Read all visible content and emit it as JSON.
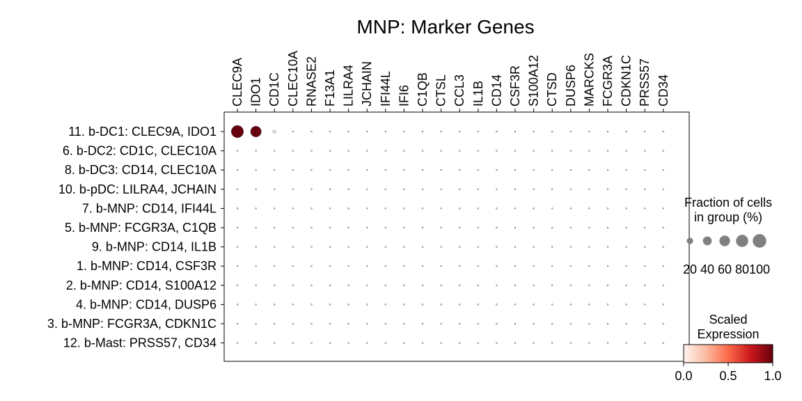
{
  "chart_data": {
    "type": "dotplot",
    "title": "MNP: Marker Genes",
    "genes": [
      "CLEC9A",
      "IDO1",
      "CD1C",
      "CLEC10A",
      "RNASE2",
      "F13A1",
      "LILRA4",
      "JCHAIN",
      "IFI44L",
      "IFI6",
      "C1QB",
      "CTSL",
      "CCL3",
      "IL1B",
      "CD14",
      "CSF3R",
      "S100A12",
      "CTSD",
      "DUSP6",
      "MARCKS",
      "FCGR3A",
      "CDKN1C",
      "PRSS57",
      "CD34"
    ],
    "groups": [
      "11. b-DC1: CLEC9A, IDO1",
      "6. b-DC2: CD1C, CLEC10A",
      "8. b-DC3: CD14, CLEC10A",
      "10. b-pDC: LILRA4, JCHAIN",
      "7. b-MNP: CD14, IFI44L",
      "5. b-MNP: FCGR3A, C1QB",
      "9. b-MNP: CD14, IL1B",
      "1. b-MNP: CD14, CSF3R",
      "2. b-MNP: CD14, S100A12",
      "4. b-MNP: CD14, DUSP6",
      "3. b-MNP: FCGR3A, CDKN1C",
      "12. b-Mast: PRSS57, CD34"
    ],
    "fraction_pct": [
      [
        90,
        70,
        5,
        1,
        1,
        1,
        1,
        1,
        1,
        1,
        1,
        1,
        1,
        1,
        1,
        1,
        1,
        1,
        1,
        1,
        1,
        1,
        1,
        1
      ],
      [
        1,
        1,
        1,
        1,
        1,
        1,
        1,
        1,
        1,
        1,
        1,
        1,
        1,
        1,
        1,
        1,
        1,
        1,
        1,
        1,
        1,
        1,
        1,
        1
      ],
      [
        1,
        1,
        1,
        1,
        1,
        1,
        1,
        1,
        1,
        1,
        1,
        1,
        1,
        1,
        1,
        1,
        1,
        1,
        1,
        1,
        1,
        1,
        1,
        1
      ],
      [
        1,
        1,
        1,
        1,
        1,
        1,
        1,
        1,
        1,
        1,
        1,
        1,
        1,
        1,
        1,
        1,
        1,
        1,
        1,
        1,
        1,
        1,
        1,
        1
      ],
      [
        1,
        1,
        1,
        1,
        1,
        1,
        1,
        1,
        1,
        1,
        1,
        1,
        1,
        1,
        1,
        1,
        1,
        1,
        1,
        1,
        1,
        1,
        1,
        1
      ],
      [
        1,
        1,
        1,
        1,
        1,
        1,
        1,
        1,
        1,
        1,
        1,
        1,
        1,
        1,
        1,
        1,
        1,
        1,
        1,
        1,
        1,
        1,
        1,
        1
      ],
      [
        1,
        1,
        1,
        1,
        1,
        1,
        1,
        1,
        1,
        1,
        1,
        1,
        1,
        1,
        1,
        1,
        1,
        1,
        1,
        1,
        1,
        1,
        1,
        1
      ],
      [
        1,
        1,
        1,
        1,
        1,
        1,
        1,
        1,
        1,
        1,
        1,
        1,
        1,
        1,
        1,
        1,
        1,
        1,
        1,
        1,
        1,
        1,
        1,
        1
      ],
      [
        1,
        1,
        1,
        1,
        1,
        1,
        1,
        1,
        1,
        1,
        1,
        1,
        1,
        1,
        1,
        1,
        1,
        1,
        1,
        1,
        1,
        1,
        1,
        1
      ],
      [
        1,
        1,
        1,
        1,
        1,
        1,
        1,
        1,
        1,
        1,
        1,
        1,
        1,
        1,
        1,
        1,
        1,
        1,
        1,
        1,
        1,
        1,
        1,
        1
      ],
      [
        1,
        1,
        1,
        1,
        1,
        1,
        1,
        1,
        1,
        1,
        1,
        1,
        1,
        1,
        1,
        1,
        1,
        1,
        1,
        1,
        1,
        1,
        1,
        1
      ],
      [
        1,
        1,
        1,
        1,
        1,
        1,
        1,
        1,
        1,
        1,
        1,
        1,
        1,
        1,
        1,
        1,
        1,
        1,
        1,
        1,
        1,
        1,
        1,
        1
      ]
    ],
    "scaled_expression": [
      [
        1,
        1,
        0,
        0,
        0,
        0,
        0,
        0,
        0,
        0,
        0,
        0,
        0,
        0,
        0,
        0,
        0,
        0,
        0,
        0,
        0,
        0,
        0,
        0
      ],
      [
        0,
        0,
        0,
        0,
        0,
        0,
        0,
        0,
        0,
        0,
        0,
        0,
        0,
        0,
        0,
        0,
        0,
        0,
        0,
        0,
        0,
        0,
        0,
        0
      ],
      [
        0,
        0,
        0,
        0,
        0,
        0,
        0,
        0,
        0,
        0,
        0,
        0,
        0,
        0,
        0,
        0,
        0,
        0,
        0,
        0,
        0,
        0,
        0,
        0
      ],
      [
        0,
        0,
        0,
        0,
        0,
        0,
        0,
        0,
        0,
        0,
        0,
        0,
        0,
        0,
        0,
        0,
        0,
        0,
        0,
        0,
        0,
        0,
        0,
        0
      ],
      [
        0,
        0,
        0,
        0,
        0,
        0,
        0,
        0,
        0,
        0,
        0,
        0,
        0,
        0,
        0,
        0,
        0,
        0,
        0,
        0,
        0,
        0,
        0,
        0
      ],
      [
        0,
        0,
        0,
        0,
        0,
        0,
        0,
        0,
        0,
        0,
        0,
        0,
        0,
        0,
        0,
        0,
        0,
        0,
        0,
        0,
        0,
        0,
        0,
        0
      ],
      [
        0,
        0,
        0,
        0,
        0,
        0,
        0,
        0,
        0,
        0,
        0,
        0,
        0,
        0,
        0,
        0,
        0,
        0,
        0,
        0,
        0,
        0,
        0,
        0
      ],
      [
        0,
        0,
        0,
        0,
        0,
        0,
        0,
        0,
        0,
        0,
        0,
        0,
        0,
        0,
        0,
        0,
        0,
        0,
        0,
        0,
        0,
        0,
        0,
        0
      ],
      [
        0,
        0,
        0,
        0,
        0,
        0,
        0,
        0,
        0,
        0,
        0,
        0,
        0,
        0,
        0,
        0,
        0,
        0,
        0,
        0,
        0,
        0,
        0,
        0
      ],
      [
        0,
        0,
        0,
        0,
        0,
        0,
        0,
        0,
        0,
        0,
        0,
        0,
        0,
        0,
        0,
        0,
        0,
        0,
        0,
        0,
        0,
        0,
        0,
        0
      ],
      [
        0,
        0,
        0,
        0,
        0,
        0,
        0,
        0,
        0,
        0,
        0,
        0,
        0,
        0,
        0,
        0,
        0,
        0,
        0,
        0,
        0,
        0,
        0,
        0
      ],
      [
        0,
        0,
        0,
        0,
        0,
        0,
        0,
        0,
        0,
        0,
        0,
        0,
        0,
        0,
        0,
        0,
        0,
        0,
        0,
        0,
        0,
        0,
        0,
        0
      ]
    ],
    "size_legend": {
      "title_lines": [
        "Fraction of cells",
        "in group (%)"
      ],
      "values": [
        20,
        40,
        60,
        80,
        100
      ],
      "labels": [
        "20",
        "40",
        "60",
        "80",
        "100"
      ]
    },
    "color_legend": {
      "title_lines": [
        "Scaled",
        "Expression"
      ],
      "range": [
        0.0,
        1.0
      ],
      "ticks": [
        "0.0",
        "0.5",
        "1.0"
      ],
      "colormap": "Reds",
      "stops": [
        "#fff5f0",
        "#fcbba1",
        "#fb6a4a",
        "#cb181d",
        "#67000d"
      ]
    }
  }
}
